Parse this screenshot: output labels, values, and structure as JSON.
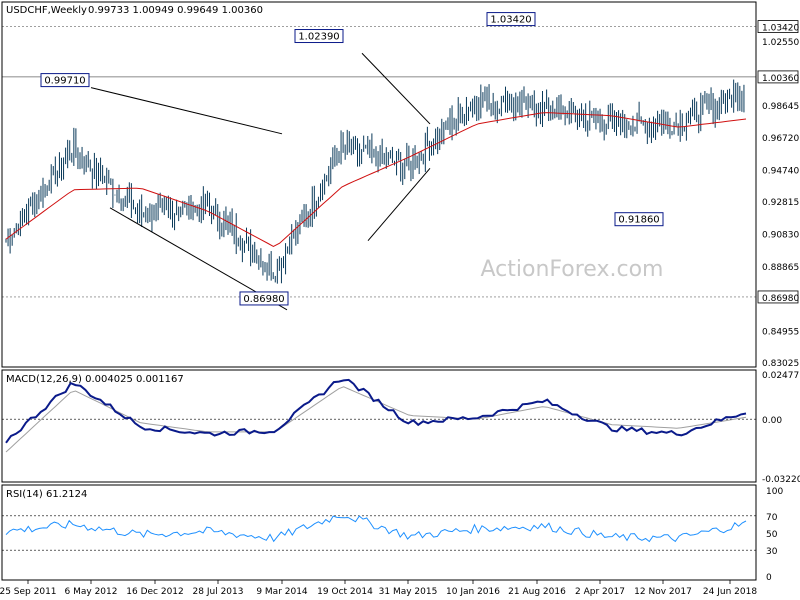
{
  "header": {
    "symbol": "USDCHF,Weekly",
    "ohlc": "0.99733 1.00949 0.99649 1.00360"
  },
  "watermark": "ActionForex.com",
  "colors": {
    "price_bar": "#0a3a5a",
    "sma": "#d01010",
    "macd_line": "#0a1a8a",
    "macd_signal": "#a0a0a0",
    "rsi_line": "#1e90ff",
    "level_line": "#000000",
    "trendline": "#000000",
    "watermark": "#c8c8c8"
  },
  "chart_data": [
    {
      "type": "line",
      "panel": "price",
      "title": "USDCHF,Weekly",
      "ylim": [
        0.83025,
        1.0455
      ],
      "y_ticks": [
        "1.03420",
        "1.02550",
        "1.00360",
        "0.98645",
        "0.96720",
        "0.94740",
        "0.92815",
        "0.90830",
        "0.88865",
        "0.86980",
        "0.84955",
        "0.83025"
      ],
      "x_ticks": [
        "25 Sep 2011",
        "6 May 2012",
        "16 Dec 2012",
        "28 Jul 2013",
        "9 Mar 2014",
        "19 Oct 2014",
        "31 May 2015",
        "10 Jan 2016",
        "21 Aug 2016",
        "2 Apr 2017",
        "12 Nov 2017",
        "24 Jun 2018"
      ],
      "series": [
        {
          "style": "ohlc-bars",
          "points": [
            {
              "x": "25 Sep 2011",
              "y": 0.905
            },
            {
              "x": "6 May 2012",
              "y": 0.96
            },
            {
              "x": "16 Dec 2012",
              "y": 0.92
            },
            {
              "x": "28 Jul 2013",
              "y": 0.925
            },
            {
              "x": "9 Mar 2014",
              "y": 0.885
            },
            {
              "x": "19 Oct 2014",
              "y": 0.96
            },
            {
              "x": "31 May 2015",
              "y": 0.95
            },
            {
              "x": "10 Jan 2016",
              "y": 0.99
            },
            {
              "x": "21 Aug 2016",
              "y": 0.985
            },
            {
              "x": "2 Apr 2017",
              "y": 0.975
            },
            {
              "x": "12 Nov 2017",
              "y": 0.975
            },
            {
              "x": "24 Jun 2018",
              "y": 0.995
            }
          ]
        },
        {
          "style": "moving-average",
          "points": [
            {
              "x": "25 Sep 2011",
              "y": 0.905
            },
            {
              "x": "6 May 2012",
              "y": 0.935
            },
            {
              "x": "16 Dec 2012",
              "y": 0.936
            },
            {
              "x": "28 Jul 2013",
              "y": 0.922
            },
            {
              "x": "9 Mar 2014",
              "y": 0.9
            },
            {
              "x": "19 Oct 2014",
              "y": 0.937
            },
            {
              "x": "31 May 2015",
              "y": 0.955
            },
            {
              "x": "10 Jan 2016",
              "y": 0.975
            },
            {
              "x": "21 Aug 2016",
              "y": 0.982
            },
            {
              "x": "2 Apr 2017",
              "y": 0.98
            },
            {
              "x": "12 Nov 2017",
              "y": 0.973
            },
            {
              "x": "24 Jun 2018",
              "y": 0.978
            }
          ]
        }
      ],
      "annotations": [
        {
          "label": "0.99710",
          "x": "6 May 2012",
          "y": 0.9971
        },
        {
          "label": "1.02390",
          "x": "19 Oct 2014",
          "y": 1.0239
        },
        {
          "label": "1.03420",
          "x": "21 Aug 2016",
          "y": 1.0342
        },
        {
          "label": "0.86980",
          "x": "9 Mar 2014",
          "y": 0.8698
        },
        {
          "label": "0.91860",
          "x": "12 Nov 2017",
          "y": 0.9186
        }
      ],
      "level_lines": [
        "1.03420",
        "1.00360",
        "0.86980"
      ],
      "current_value": "1.00360"
    },
    {
      "type": "line",
      "panel": "macd",
      "title": "MACD(12,26,9) 0.004025 0.001167",
      "ylim": [
        -0.0322,
        0.0247
      ],
      "y_ticks": [
        "0.024771",
        "0.00",
        "-0.032205"
      ],
      "series": [
        {
          "style": "macd",
          "values": [
            -0.012,
            0.02,
            -0.004,
            -0.008,
            -0.006,
            0.023,
            -0.002,
            0.001,
            0.01,
            -0.005,
            -0.008,
            0.004
          ]
        },
        {
          "style": "signal",
          "values": [
            -0.018,
            0.016,
            -0.002,
            -0.007,
            -0.007,
            0.018,
            0.002,
            0.0,
            0.007,
            -0.003,
            -0.005,
            0.001
          ]
        }
      ]
    },
    {
      "type": "line",
      "panel": "rsi",
      "title": "RSI(14) 61.2124",
      "ylim": [
        0,
        100
      ],
      "y_ticks": [
        "100",
        "70",
        "50",
        "30",
        "0"
      ],
      "series": [
        {
          "style": "rsi",
          "values": [
            52,
            60,
            48,
            52,
            44,
            72,
            46,
            55,
            58,
            45,
            44,
            61
          ]
        }
      ]
    }
  ]
}
